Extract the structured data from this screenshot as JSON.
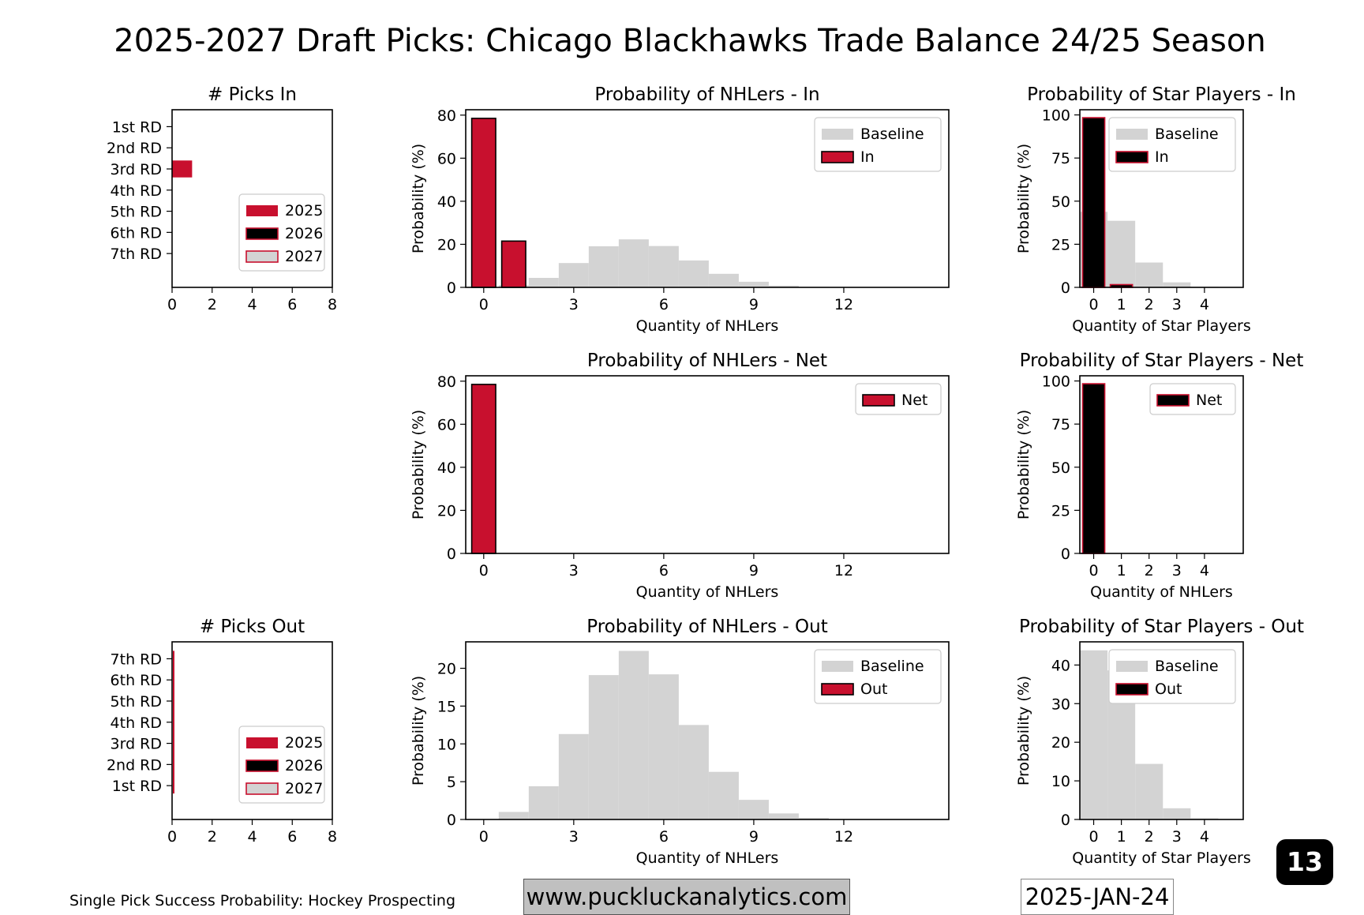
{
  "title": "2025-2027 Draft Picks: Chicago Blackhawks Trade Balance 24/25 Season",
  "colors": {
    "c2025": "#c8102e",
    "c2026": "#000000",
    "c2027": "#d3d3d3",
    "baseline": "#d3d3d3"
  },
  "footer": {
    "source": "Single Pick Success Probability: Hockey Prospecting",
    "site": "www.puckluckanalytics.com",
    "date": "2025-JAN-24",
    "page": "13"
  },
  "chart_data": [
    {
      "id": "picks-in",
      "type": "bar",
      "orientation": "horizontal",
      "title": "# Picks In",
      "xlabel": "",
      "ylabel": "",
      "categories": [
        "1st RD",
        "2nd RD",
        "3rd RD",
        "4th RD",
        "5th RD",
        "6th RD",
        "7th RD"
      ],
      "series": [
        {
          "name": "2025",
          "values": [
            0,
            0,
            1,
            0,
            0,
            0,
            0
          ]
        },
        {
          "name": "2026",
          "values": [
            0,
            0,
            0,
            0,
            0,
            0,
            0
          ]
        },
        {
          "name": "2027",
          "values": [
            0,
            0,
            0,
            0,
            0,
            0,
            0
          ]
        }
      ],
      "xlim": [
        0,
        8
      ],
      "xticks": [
        0,
        2,
        4,
        6,
        8
      ],
      "legend": "lower-right"
    },
    {
      "id": "picks-out",
      "type": "bar",
      "orientation": "horizontal",
      "title": "# Picks Out",
      "xlabel": "",
      "ylabel": "",
      "categories": [
        "7th RD",
        "6th RD",
        "5th RD",
        "4th RD",
        "3rd RD",
        "2nd RD",
        "1st RD"
      ],
      "series": [
        {
          "name": "2025",
          "values": [
            0,
            0,
            0,
            0,
            0,
            0,
            0
          ]
        },
        {
          "name": "2026",
          "values": [
            0,
            0,
            0,
            0,
            0,
            0,
            0
          ]
        },
        {
          "name": "2027",
          "values": [
            0,
            0,
            0,
            0,
            0,
            0,
            0
          ]
        }
      ],
      "xlim": [
        0,
        8
      ],
      "xticks": [
        0,
        2,
        4,
        6,
        8
      ],
      "legend": "lower-right"
    },
    {
      "id": "nhl-in",
      "type": "bar",
      "title": "Probability of NHLers - In",
      "xlabel": "Quantity of NHLers",
      "ylabel": "Probability (%)",
      "xlim": [
        -0.6,
        15.5
      ],
      "xticks": [
        0,
        3,
        6,
        9,
        12
      ],
      "ylim": [
        0,
        82.5
      ],
      "yticks": [
        0,
        20,
        40,
        60,
        80
      ],
      "baseline": {
        "name": "Baseline",
        "x": [
          0,
          1,
          2,
          3,
          4,
          5,
          6,
          7,
          8,
          9,
          10,
          11,
          12
        ],
        "values": [
          0,
          1.0,
          4.4,
          11.3,
          19.1,
          22.3,
          19.2,
          12.5,
          6.3,
          2.6,
          0.8,
          0.2,
          0.05
        ]
      },
      "series": [
        {
          "name": "In",
          "x": [
            0,
            1
          ],
          "values": [
            78.5,
            21.5
          ]
        }
      ],
      "legend": "top-right"
    },
    {
      "id": "star-in",
      "type": "bar",
      "title": "Probability of Star Players - In",
      "xlabel": "Quantity of Star Players",
      "ylabel": "Probability (%)",
      "xlim": [
        -0.5,
        5.4
      ],
      "xticks": [
        0,
        1,
        2,
        3,
        4
      ],
      "ylim": [
        0,
        103
      ],
      "yticks": [
        0,
        25,
        50,
        75,
        100
      ],
      "baseline": {
        "name": "Baseline",
        "x": [
          0,
          1,
          2,
          3,
          4
        ],
        "values": [
          43.8,
          38.6,
          14.4,
          2.9,
          0.3
        ]
      },
      "series": [
        {
          "name": "In",
          "x": [
            0,
            1
          ],
          "values": [
            98.4,
            1.6
          ]
        }
      ],
      "legend": "top-right"
    },
    {
      "id": "nhl-net",
      "type": "bar",
      "title": "Probability of NHLers - Net",
      "xlabel": "Quantity of NHLers",
      "ylabel": "Probability (%)",
      "xlim": [
        -0.6,
        15.5
      ],
      "xticks": [
        0,
        3,
        6,
        9,
        12
      ],
      "ylim": [
        0,
        82.5
      ],
      "yticks": [
        0,
        20,
        40,
        60,
        80
      ],
      "series": [
        {
          "name": "Net",
          "x": [
            0
          ],
          "values": [
            78.5
          ]
        }
      ],
      "legend": "top-right"
    },
    {
      "id": "star-net",
      "type": "bar",
      "title": "Probability of Star Players - Net",
      "xlabel": "Quantity of NHLers",
      "ylabel": "Probability (%)",
      "xlim": [
        -0.5,
        5.4
      ],
      "xticks": [
        0,
        1,
        2,
        3,
        4
      ],
      "ylim": [
        0,
        103
      ],
      "yticks": [
        0,
        25,
        50,
        75,
        100
      ],
      "series": [
        {
          "name": "Net",
          "x": [
            0
          ],
          "values": [
            98.4
          ]
        }
      ],
      "legend": "top-right"
    },
    {
      "id": "nhl-out",
      "type": "bar",
      "title": "Probability of NHLers - Out",
      "xlabel": "Quantity of NHLers",
      "ylabel": "Probability (%)",
      "xlim": [
        -0.6,
        15.5
      ],
      "xticks": [
        0,
        3,
        6,
        9,
        12
      ],
      "ylim": [
        0,
        23.5
      ],
      "yticks": [
        0,
        5,
        10,
        15,
        20
      ],
      "baseline": {
        "name": "Baseline",
        "x": [
          0,
          1,
          2,
          3,
          4,
          5,
          6,
          7,
          8,
          9,
          10,
          11,
          12
        ],
        "values": [
          0,
          1.0,
          4.4,
          11.3,
          19.1,
          22.3,
          19.2,
          12.5,
          6.3,
          2.6,
          0.8,
          0.2,
          0.05
        ]
      },
      "series": [
        {
          "name": "Out",
          "x": [],
          "values": []
        }
      ],
      "legend": "top-right"
    },
    {
      "id": "star-out",
      "type": "bar",
      "title": "Probability of Star Players - Out",
      "xlabel": "Quantity of Star Players",
      "ylabel": "Probability (%)",
      "xlim": [
        -0.5,
        5.4
      ],
      "xticks": [
        0,
        1,
        2,
        3,
        4
      ],
      "ylim": [
        0,
        46
      ],
      "yticks": [
        0,
        10,
        20,
        30,
        40
      ],
      "baseline": {
        "name": "Baseline",
        "x": [
          0,
          1,
          2,
          3,
          4
        ],
        "values": [
          43.8,
          38.6,
          14.4,
          2.9,
          0.3
        ]
      },
      "series": [
        {
          "name": "Out",
          "x": [],
          "values": []
        }
      ],
      "legend": "top-right"
    }
  ]
}
